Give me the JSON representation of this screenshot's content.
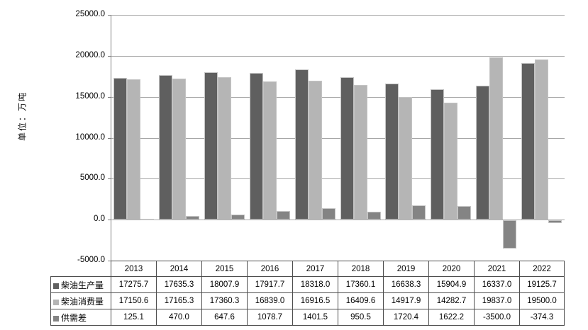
{
  "unit_label": "单位：万吨",
  "y_axis": {
    "ticks": [
      "25000.0",
      "20000.0",
      "15000.0",
      "10000.0",
      "5000.0",
      "0.0",
      "-5000.0"
    ]
  },
  "colors": {
    "production": "#5f5f5f",
    "consumption": "#b5b5b5",
    "gap": "#848484",
    "gridline": "#a6a6a6",
    "axis": "#808080",
    "table_border": "#4d4d4d"
  },
  "chart_data": {
    "type": "bar",
    "title": "",
    "xlabel": "",
    "ylabel": "单位：万吨",
    "ylim": [
      -5000,
      25000
    ],
    "ytick_interval": 5000,
    "grid": true,
    "legend_position": "data-table-left",
    "categories": [
      "2013",
      "2014",
      "2015",
      "2016",
      "2017",
      "2018",
      "2019",
      "2020",
      "2021",
      "2022"
    ],
    "series": [
      {
        "name": "柴油生产量",
        "color": "#5f5f5f",
        "values": [
          17275.7,
          17635.3,
          18007.9,
          17917.7,
          18318.0,
          17360.1,
          16638.3,
          15904.9,
          16337.0,
          19125.7
        ]
      },
      {
        "name": "柴油消费量",
        "color": "#b5b5b5",
        "values": [
          17150.6,
          17165.3,
          17360.3,
          16839.0,
          16916.5,
          16409.6,
          14917.9,
          14282.7,
          19837.0,
          19500.0
        ]
      },
      {
        "name": "供需差",
        "color": "#848484",
        "values": [
          125.1,
          470.0,
          647.6,
          1078.7,
          1401.5,
          950.5,
          1720.4,
          1622.2,
          -3500.0,
          -374.3
        ]
      }
    ]
  }
}
